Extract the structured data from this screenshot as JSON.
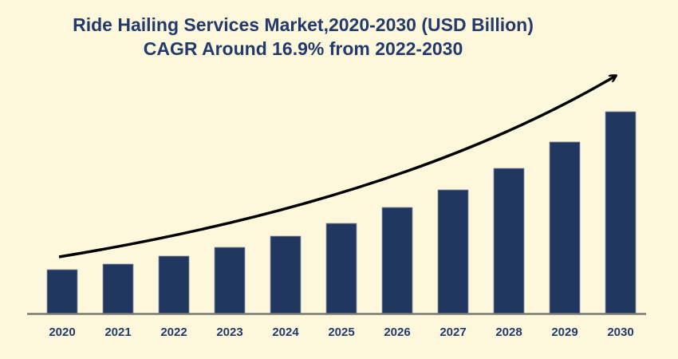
{
  "chart_data": {
    "type": "bar",
    "title": "Ride Hailing Services Market,2020-2030 (USD Billion)",
    "subtitle": "CAGR Around 16.9% from 2022-2030",
    "xlabel": "",
    "ylabel": "",
    "categories": [
      "2020",
      "2021",
      "2022",
      "2023",
      "2024",
      "2025",
      "2026",
      "2027",
      "2028",
      "2029",
      "2030"
    ],
    "values": [
      55,
      62,
      72,
      83,
      97,
      113,
      133,
      155,
      182,
      215,
      253
    ],
    "ylim": [
      0,
      260
    ],
    "grid": false,
    "legend": "none",
    "annotations": [
      "upward trend arrow"
    ],
    "colors": {
      "bar": "#22375f",
      "background": "#fdf8dc",
      "text": "#233a6b",
      "axis": "#7a7a72",
      "arrow": "#000000"
    }
  }
}
